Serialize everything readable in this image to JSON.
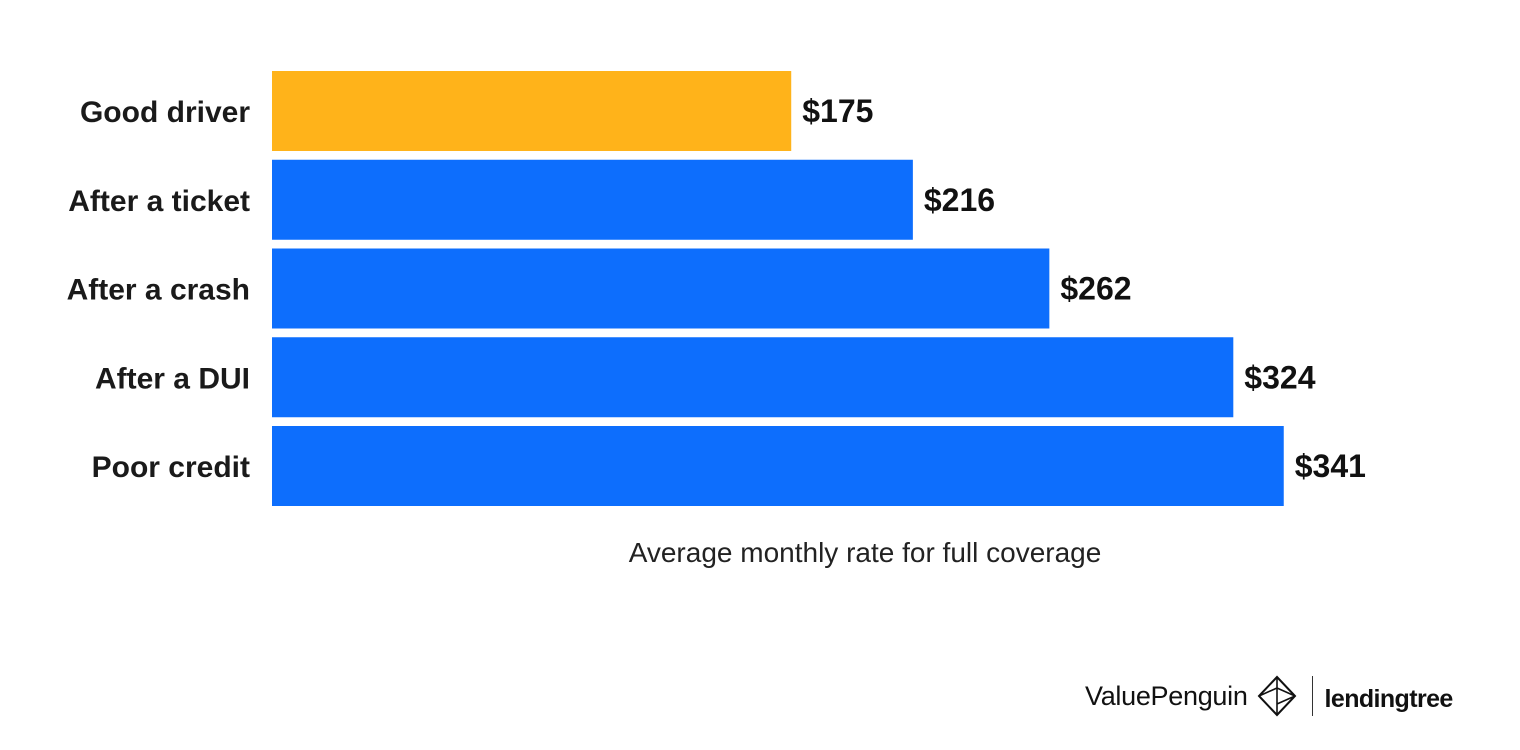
{
  "chart_data": {
    "type": "bar",
    "orientation": "horizontal",
    "categories": [
      "Good driver",
      "After a ticket",
      "After a crash",
      "After a DUI",
      "Poor credit"
    ],
    "values": [
      175,
      216,
      262,
      324,
      341
    ],
    "value_labels": [
      "$175",
      "$216",
      "$262",
      "$324",
      "$341"
    ],
    "bar_colors": [
      "#FFB31A",
      "#0D6EFD",
      "#0D6EFD",
      "#0D6EFD",
      "#0D6EFD"
    ],
    "xlabel": "Average monthly rate for full coverage",
    "xlim": [
      0,
      350
    ],
    "grid": false,
    "legend": "none"
  },
  "branding": {
    "name": "ValuePenguin",
    "icon": "valuepenguin-logo-icon",
    "partner": "lendingtree"
  }
}
